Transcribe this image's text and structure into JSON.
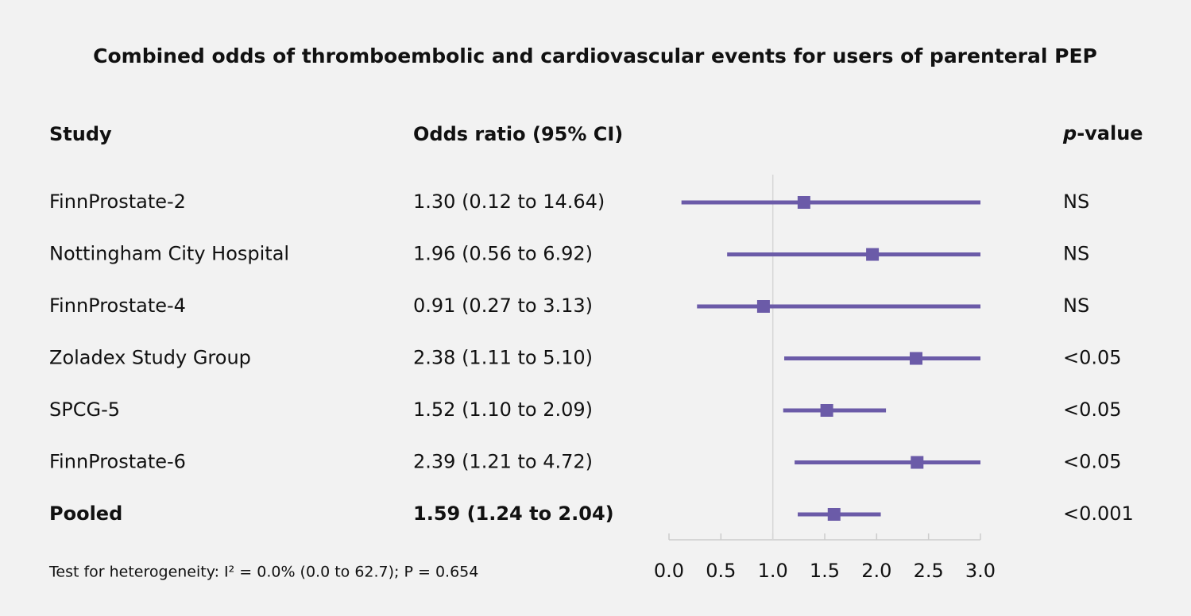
{
  "chart_data": {
    "type": "forest",
    "title": "Combined odds of thromboembolic and cardiovascular events for users of parenteral PEP",
    "column_headers": [
      "Study",
      "Odds ratio (95% CI)",
      "p-value"
    ],
    "categories": [
      "FinnProstate-2",
      "Nottingham City Hospital",
      "FinnProstate-4",
      "Zoladex Study Group",
      "SPCG-5",
      "FinnProstate-6"
    ],
    "values": [
      1.3,
      1.96,
      0.91,
      2.38,
      1.52,
      2.39
    ],
    "lower": [
      0.12,
      0.56,
      0.27,
      1.11,
      1.1,
      1.21
    ],
    "upper": [
      14.64,
      6.92,
      3.13,
      5.1,
      2.09,
      4.72
    ],
    "value_labels": [
      "1.30 (0.12 to 14.64)",
      "1.96 (0.56 to 6.92)",
      "0.91 (0.27 to 3.13)",
      "2.38 (1.11 to 5.10)",
      "1.52 (1.10 to 2.09)",
      "2.39 (1.21 to 4.72)"
    ],
    "p_values": [
      "NS",
      "NS",
      "NS",
      "<0.05",
      "<0.05",
      "<0.05"
    ],
    "pooled": {
      "name": "Pooled",
      "value": 1.59,
      "lower": 1.24,
      "upper": 2.04,
      "value_label": "1.59 (1.24 to 2.04)",
      "p_value": "<0.001"
    },
    "footnote": "Test for heterogeneity: I² = 0.0% (0.0 to 62.7); P = 0.654",
    "color": "#6b5ba8",
    "reference_line": 1,
    "xlim": [
      0,
      3
    ],
    "xticks": [
      {
        "value": 0,
        "label": "0.0"
      },
      0.5,
      {
        "value": 1,
        "label": "1.0"
      },
      1.5,
      {
        "value": 2,
        "label": "2.0"
      },
      2.5,
      {
        "value": 3,
        "label": "3.0"
      }
    ]
  }
}
